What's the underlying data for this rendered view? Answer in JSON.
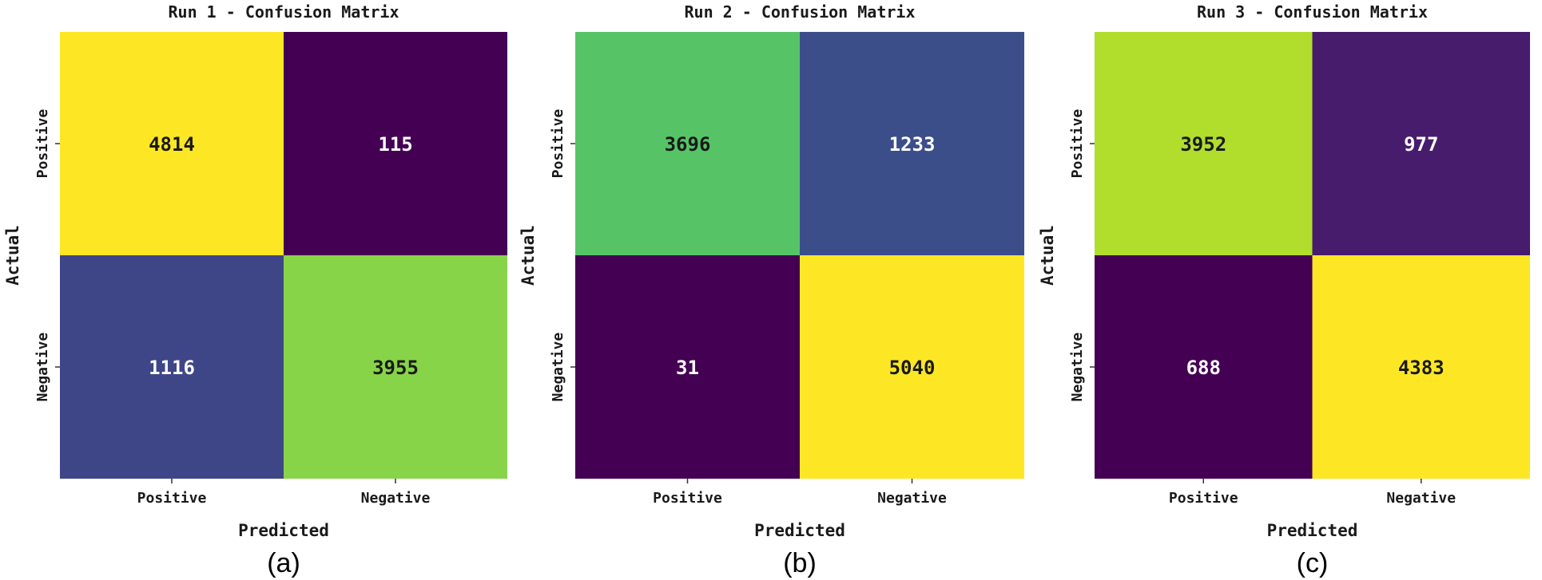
{
  "chart_data": [
    {
      "type": "heatmap",
      "panel_label": "(a)",
      "title": "Run 1 - Confusion Matrix",
      "xlabel": "Predicted",
      "ylabel": "Actual",
      "x_tick_labels": [
        "Positive",
        "Negative"
      ],
      "y_tick_labels": [
        "Positive",
        "Negative"
      ],
      "values": [
        [
          4814,
          115
        ],
        [
          1116,
          3955
        ]
      ],
      "colormap": "viridis"
    },
    {
      "type": "heatmap",
      "panel_label": "(b)",
      "title": "Run 2 - Confusion Matrix",
      "xlabel": "Predicted",
      "ylabel": "Actual",
      "x_tick_labels": [
        "Positive",
        "Negative"
      ],
      "y_tick_labels": [
        "Positive",
        "Negative"
      ],
      "values": [
        [
          3696,
          1233
        ],
        [
          31,
          5040
        ]
      ],
      "colormap": "viridis"
    },
    {
      "type": "heatmap",
      "panel_label": "(c)",
      "title": "Run 3 - Confusion Matrix",
      "xlabel": "Predicted",
      "ylabel": "Actual",
      "x_tick_labels": [
        "Positive",
        "Negative"
      ],
      "y_tick_labels": [
        "Positive",
        "Negative"
      ],
      "values": [
        [
          3952,
          977
        ],
        [
          688,
          4383
        ]
      ],
      "colormap": "viridis"
    }
  ],
  "colors": {
    "viridis": [
      "#440154",
      "#482878",
      "#3e4989",
      "#31688e",
      "#26828e",
      "#1f9e89",
      "#35b779",
      "#6ece58",
      "#b5de2b",
      "#fde725"
    ],
    "text_dark": "#1a1a1a",
    "text_light": "#ffffff"
  }
}
